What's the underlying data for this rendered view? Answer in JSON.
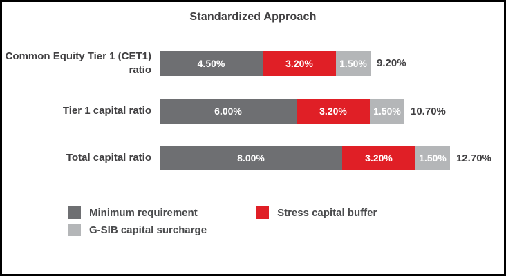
{
  "title": "Standardized Approach",
  "colors": {
    "minimum": "#6e6f72",
    "stress": "#e01f26",
    "gsib": "#b4b6b8",
    "text": "#414042"
  },
  "chart_data": {
    "type": "bar",
    "orientation": "horizontal",
    "stacked": true,
    "title": "Standardized Approach",
    "categories": [
      "Common Equity Tier 1 (CET1) ratio",
      "Tier 1 capital ratio",
      "Total capital ratio"
    ],
    "series": [
      {
        "name": "Minimum requirement",
        "color_key": "minimum",
        "values": [
          4.5,
          6.0,
          8.0
        ],
        "labels": [
          "4.50%",
          "6.00%",
          "8.00%"
        ]
      },
      {
        "name": "Stress capital buffer",
        "color_key": "stress",
        "values": [
          3.2,
          3.2,
          3.2
        ],
        "labels": [
          "3.20%",
          "3.20%",
          "3.20%"
        ]
      },
      {
        "name": "G-SIB capital surcharge",
        "color_key": "gsib",
        "values": [
          1.5,
          1.5,
          1.5
        ],
        "labels": [
          "1.50%",
          "1.50%",
          "1.50%"
        ]
      }
    ],
    "totals": [
      "9.20%",
      "10.70%",
      "12.70%"
    ],
    "xlim": [
      0,
      13
    ],
    "grid": false,
    "legend_position": "bottom"
  },
  "legend": {
    "items": [
      {
        "label": "Minimum requirement",
        "color_key": "minimum"
      },
      {
        "label": "Stress capital buffer",
        "color_key": "stress"
      },
      {
        "label": "G-SIB capital surcharge",
        "color_key": "gsib"
      }
    ]
  }
}
